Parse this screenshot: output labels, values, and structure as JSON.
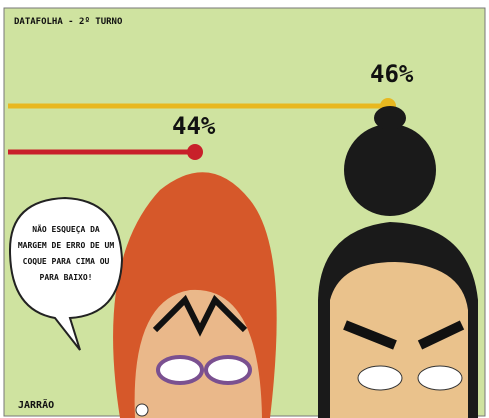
{
  "source": "DATAFOLHA - 2º TURNO",
  "labels": {
    "yellow": "46%",
    "red": "44%"
  },
  "speech": [
    "NÃO ESQUEÇA DA",
    "MARGEM DE ERRO DE UM",
    "COQUE PARA CIMA OU",
    "PARA BAIXO!"
  ],
  "signature": "JARRÃO"
}
